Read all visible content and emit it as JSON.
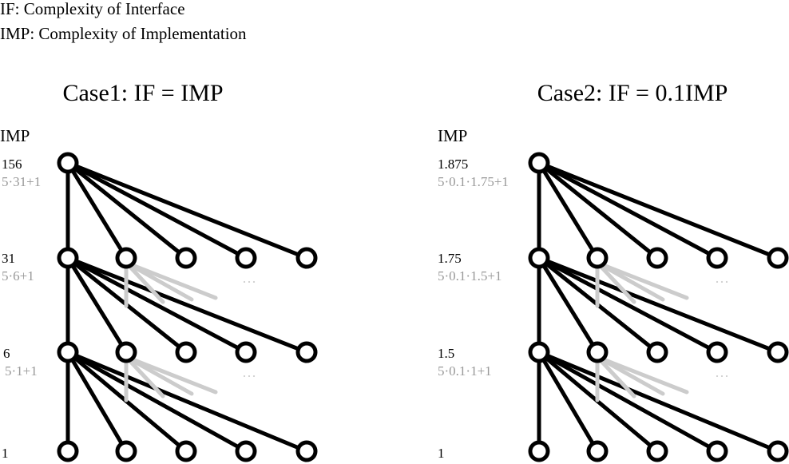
{
  "legend": [
    "IF: Complexity of Interface",
    "IMP: Complexity of Implementation"
  ],
  "colors": {
    "ink": "#000000",
    "muted": "#999999",
    "ghost": "#cccccc",
    "node_fill": "#ffffff"
  },
  "panels": [
    {
      "title": "Case1: IF = IMP",
      "axis_label": "IMP",
      "ellipsis": "···",
      "levels": [
        {
          "value": "156",
          "formula": "5·31+1"
        },
        {
          "value": "31",
          "formula": "5·6+1"
        },
        {
          "value": "6",
          "formula": "5·1+1"
        },
        {
          "value": "1",
          "formula": ""
        }
      ]
    },
    {
      "title": "Case2: IF = 0.1IMP",
      "axis_label": "IMP",
      "ellipsis": "···",
      "levels": [
        {
          "value": "1.875",
          "formula": "5·0.1·1.75+1"
        },
        {
          "value": "1.75",
          "formula": "5·0.1·1.5+1"
        },
        {
          "value": "1.5",
          "formula": "5·0.1·1+1"
        },
        {
          "value": "1",
          "formula": ""
        }
      ]
    }
  ]
}
